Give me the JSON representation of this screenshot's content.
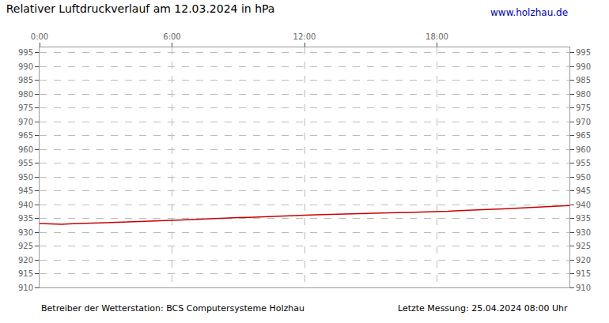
{
  "chart_data": {
    "type": "line",
    "title": "Relativer Luftdruckverlauf am 12.03.2024 in hPa",
    "annotations": [
      "www.holzhau.de",
      "Betreiber der Wetterstation: BCS Computersysteme Holzhau",
      "Letzte Messung: 25.04.2024 08:00 Uhr"
    ],
    "x": [
      0,
      30,
      60,
      90,
      120,
      150,
      180,
      210,
      240,
      270,
      300,
      330,
      360,
      390,
      420,
      450,
      480,
      510,
      540,
      570,
      600,
      630,
      660,
      690,
      720,
      750,
      780,
      810,
      840,
      870,
      900,
      930,
      960,
      990,
      1020,
      1050,
      1080,
      1110,
      1140,
      1170,
      1200,
      1230,
      1260,
      1290,
      1320,
      1350,
      1380,
      1410,
      1440
    ],
    "values": [
      933.2,
      933.0,
      932.9,
      933.1,
      933.3,
      933.4,
      933.5,
      933.6,
      933.8,
      934.0,
      934.1,
      934.2,
      934.3,
      934.5,
      934.7,
      934.9,
      935.1,
      935.2,
      935.3,
      935.4,
      935.6,
      935.7,
      935.8,
      936.0,
      936.2,
      936.3,
      936.4,
      936.4,
      936.5,
      936.6,
      936.7,
      936.8,
      937.0,
      937.1,
      937.2,
      937.3,
      937.4,
      937.6,
      937.8,
      937.9,
      938.1,
      938.3,
      938.5,
      938.7,
      938.9,
      939.1,
      939.3,
      939.5,
      939.7
    ],
    "color": "#cc0000",
    "xlim": [
      0,
      1440
    ],
    "xticks": [
      {
        "value": 0,
        "label": "0:00"
      },
      {
        "value": 360,
        "label": "6:00"
      },
      {
        "value": 720,
        "label": "12:00"
      },
      {
        "value": 1080,
        "label": "18:00"
      }
    ],
    "ylim": [
      910,
      997
    ],
    "yticks": [
      910,
      915,
      920,
      925,
      930,
      935,
      940,
      945,
      950,
      955,
      960,
      965,
      970,
      975,
      980,
      985,
      990,
      995
    ],
    "y2lim": [
      910,
      997
    ],
    "y2ticks": [
      910,
      915,
      920,
      925,
      930,
      935,
      940,
      945,
      950,
      955,
      960,
      965,
      970,
      975,
      980,
      985,
      990,
      995
    ],
    "grid": true
  }
}
